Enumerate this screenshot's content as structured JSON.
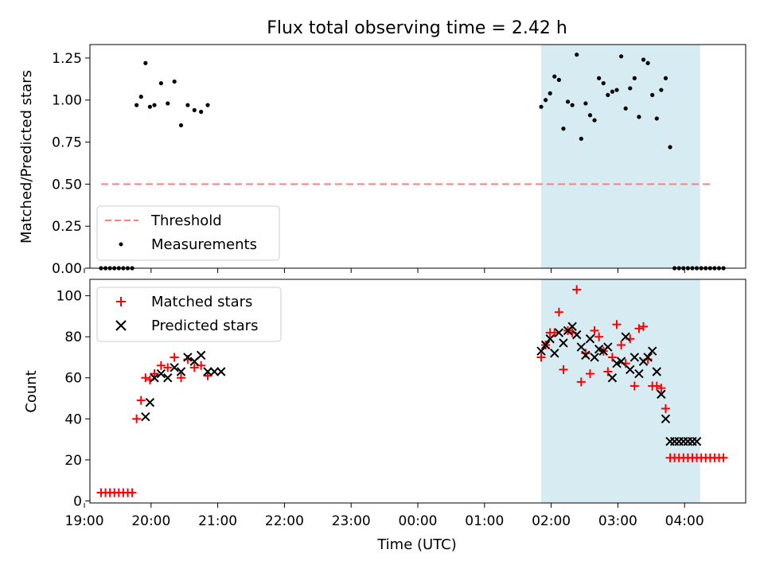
{
  "title": "Flux total observing time = 2.42 h",
  "colors": {
    "threshold": "#ff7f7f",
    "measurements": "#000000",
    "matched": "#ff0000",
    "predicted": "#000000",
    "shade": "#add8e6"
  },
  "chart_data": [
    {
      "type": "scatter",
      "title": "Flux total observing time = 2.42 h",
      "xlabel": "",
      "ylabel": "Matched/Predicted stars",
      "xlim": [
        "19:05",
        "04:55"
      ],
      "ylim": [
        0,
        1.33
      ],
      "yticks": [
        "0.00",
        "0.25",
        "0.50",
        "0.75",
        "1.00",
        "1.25"
      ],
      "shaded_range": [
        "01:51",
        "04:14"
      ],
      "legend": "lower-left",
      "series": [
        {
          "name": "Threshold",
          "style": "dashed-line",
          "x": [
            "19:15",
            "04:25"
          ],
          "y": [
            0.5,
            0.5
          ]
        },
        {
          "name": "Measurements",
          "style": "dot",
          "x": [
            "19:15",
            "19:19",
            "19:23",
            "19:27",
            "19:31",
            "19:35",
            "19:39",
            "19:43",
            "19:47",
            "19:51",
            "19:55",
            "19:59",
            "20:03",
            "20:09",
            "20:15",
            "20:21",
            "20:27",
            "20:33",
            "20:39",
            "20:45",
            "20:51",
            "01:51",
            "01:55",
            "01:59",
            "02:03",
            "02:07",
            "02:11",
            "02:15",
            "02:19",
            "02:23",
            "02:27",
            "02:31",
            "02:35",
            "02:39",
            "02:43",
            "02:47",
            "02:51",
            "02:55",
            "02:59",
            "03:03",
            "03:07",
            "03:11",
            "03:15",
            "03:19",
            "03:23",
            "03:27",
            "03:31",
            "03:35",
            "03:39",
            "03:43",
            "03:47",
            "03:51",
            "03:55",
            "03:59",
            "04:03",
            "04:07",
            "04:11",
            "04:15",
            "04:19",
            "04:23",
            "04:27",
            "04:31",
            "04:35"
          ],
          "y": [
            0,
            0,
            0,
            0,
            0,
            0,
            0,
            0,
            0.97,
            1.02,
            1.22,
            0.96,
            0.97,
            1.1,
            0.98,
            1.11,
            0.85,
            0.97,
            0.94,
            0.93,
            0.97,
            0.96,
            1.0,
            1.04,
            1.14,
            1.12,
            0.83,
            0.99,
            0.97,
            1.27,
            0.77,
            0.98,
            0.91,
            0.88,
            1.13,
            1.1,
            1.03,
            1.05,
            1.06,
            1.26,
            0.95,
            1.07,
            1.13,
            0.9,
            1.24,
            1.22,
            1.03,
            0.89,
            1.06,
            1.13,
            0.72,
            0,
            0,
            0,
            0,
            0,
            0,
            0,
            0,
            0,
            0,
            0,
            0
          ]
        }
      ]
    },
    {
      "type": "scatter",
      "title": "",
      "xlabel": "Time (UTC)",
      "ylabel": "Count",
      "xlim": [
        "19:05",
        "04:55"
      ],
      "ylim": [
        -1,
        108
      ],
      "xticks": [
        "19:00",
        "20:00",
        "21:00",
        "22:00",
        "23:00",
        "00:00",
        "01:00",
        "02:00",
        "03:00",
        "04:00"
      ],
      "yticks": [
        "0",
        "20",
        "40",
        "60",
        "80",
        "100"
      ],
      "shaded_range": [
        "01:51",
        "04:14"
      ],
      "legend": "top-left",
      "series": [
        {
          "name": "Matched stars",
          "marker": "+",
          "x": [
            "19:15",
            "19:19",
            "19:23",
            "19:27",
            "19:31",
            "19:35",
            "19:39",
            "19:43",
            "19:47",
            "19:51",
            "19:55",
            "19:59",
            "20:03",
            "20:09",
            "20:15",
            "20:21",
            "20:27",
            "20:33",
            "20:39",
            "20:45",
            "20:51",
            "01:51",
            "01:55",
            "01:59",
            "02:03",
            "02:07",
            "02:11",
            "02:15",
            "02:19",
            "02:23",
            "02:27",
            "02:31",
            "02:35",
            "02:39",
            "02:43",
            "02:47",
            "02:51",
            "02:55",
            "02:59",
            "03:03",
            "03:07",
            "03:11",
            "03:15",
            "03:19",
            "03:23",
            "03:27",
            "03:31",
            "03:35",
            "03:39",
            "03:43",
            "03:47",
            "03:51",
            "03:55",
            "03:59",
            "04:03",
            "04:07",
            "04:11",
            "04:15",
            "04:19",
            "04:23",
            "04:27",
            "04:31",
            "04:35"
          ],
          "y": [
            4,
            4,
            4,
            4,
            4,
            4,
            4,
            4,
            40,
            49,
            60,
            59,
            62,
            66,
            65,
            70,
            60,
            69,
            65,
            66,
            61,
            70,
            76,
            82,
            82,
            92,
            64,
            83,
            82,
            103,
            58,
            72,
            62,
            83,
            80,
            73,
            63,
            70,
            86,
            76,
            67,
            79,
            56,
            84,
            85,
            69,
            56,
            56,
            55,
            45,
            21,
            21,
            21,
            21,
            21,
            21,
            21,
            21,
            21,
            21,
            21,
            21,
            21
          ]
        },
        {
          "name": "Predicted stars",
          "marker": "x",
          "x": [
            "19:55",
            "19:59",
            "20:03",
            "20:09",
            "20:15",
            "20:21",
            "20:27",
            "20:33",
            "20:39",
            "20:45",
            "20:51",
            "20:57",
            "21:03",
            "01:51",
            "01:55",
            "01:59",
            "02:03",
            "02:07",
            "02:11",
            "02:15",
            "02:19",
            "02:23",
            "02:27",
            "02:31",
            "02:35",
            "02:39",
            "02:43",
            "02:47",
            "02:51",
            "02:55",
            "02:59",
            "03:03",
            "03:07",
            "03:11",
            "03:15",
            "03:19",
            "03:23",
            "03:27",
            "03:31",
            "03:35",
            "03:39",
            "03:43",
            "03:47",
            "03:51",
            "03:55",
            "03:59",
            "04:03",
            "04:07",
            "04:11"
          ],
          "y": [
            41,
            48,
            60,
            62,
            60,
            65,
            63,
            70,
            68,
            71,
            63,
            63,
            63,
            73,
            76,
            79,
            72,
            82,
            77,
            83,
            85,
            81,
            75,
            71,
            79,
            70,
            74,
            73,
            75,
            60,
            67,
            68,
            80,
            64,
            70,
            62,
            68,
            70,
            73,
            63,
            52,
            40,
            29,
            29,
            29,
            29,
            29,
            29,
            29
          ]
        }
      ]
    }
  ]
}
